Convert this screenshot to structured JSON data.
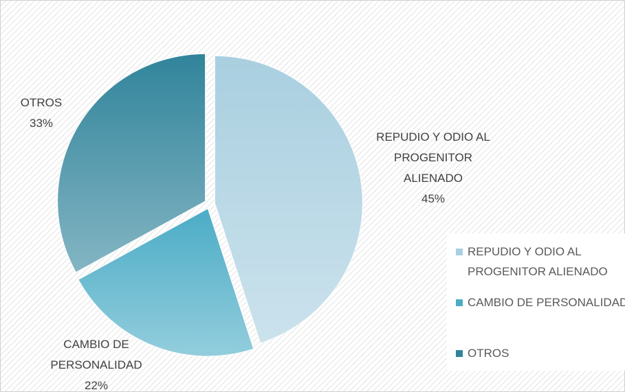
{
  "chart_data": {
    "type": "pie",
    "categories": [
      "REPUDIO Y ODIO AL PROGENITOR ALIENADO",
      "CAMBIO DE PERSONALIDAD",
      "OTROS"
    ],
    "values": [
      45,
      22,
      33
    ],
    "value_labels": [
      "45%",
      "22%",
      "33%"
    ],
    "colors": [
      "#a9cfe0",
      "#4bacc6",
      "#31849b"
    ],
    "legend": "right"
  }
}
